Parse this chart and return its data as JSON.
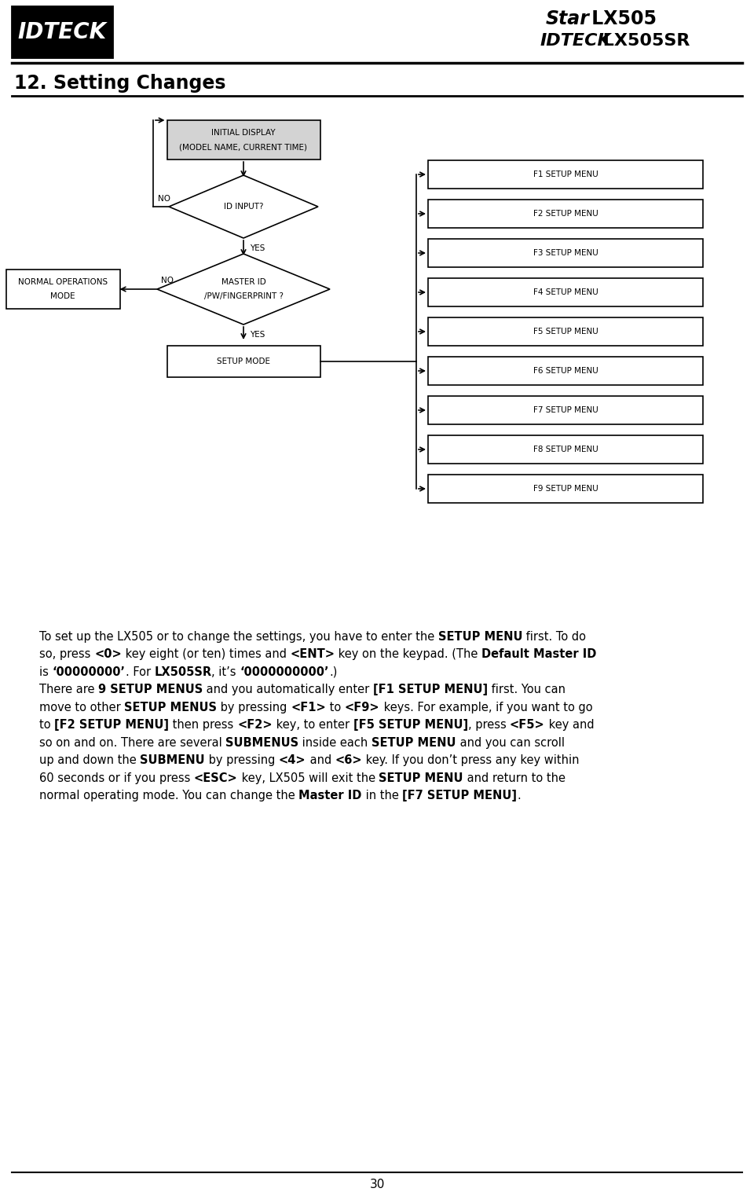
{
  "title": "12. Setting Changes",
  "page_number": "30",
  "flowchart": {
    "f_menus": [
      "F1 SETUP MENU",
      "F2 SETUP MENU",
      "F3 SETUP MENU",
      "F4 SETUP MENU",
      "F5 SETUP MENU",
      "F6 SETUP MENU",
      "F7 SETUP MENU",
      "F8 SETUP MENU",
      "F9 SETUP MENU"
    ]
  },
  "body_text": [
    [
      "To set up the LX505 or to change the settings, you have to enter the ",
      "bold",
      "SETUP MENU",
      "normal",
      " first. To do"
    ],
    [
      "so, press ",
      "bold",
      "<0>",
      "normal",
      " key eight (or ten) times and ",
      "bold",
      "<ENT>",
      "normal",
      " key on the keypad. (The ",
      "bold",
      "Default Master ID"
    ],
    [
      "is ",
      "bold",
      "‘00000000’",
      "normal",
      ". For ",
      "bold",
      "LX505SR",
      "normal",
      ", it’s ",
      "bold",
      "‘0000000000’",
      "normal",
      ".)"
    ],
    [
      "There are ",
      "bold",
      "9 SETUP MENUS",
      "normal",
      " and you automatically enter ",
      "bold",
      "[F1 SETUP MENU]",
      "normal",
      " first. You can"
    ],
    [
      "move to other ",
      "bold",
      "SETUP MENUS",
      "normal",
      " by pressing ",
      "bold",
      "<F1>",
      "normal",
      " to ",
      "bold",
      "<F9>",
      "normal",
      " keys. For example, if you want to go"
    ],
    [
      "to ",
      "bold",
      "[F2 SETUP MENU]",
      "normal",
      " then press ",
      "bold",
      "<F2>",
      "normal",
      " key, to enter ",
      "bold",
      "[F5 SETUP MENU]",
      "normal",
      ", press ",
      "bold",
      "<F5>",
      "normal",
      " key and"
    ],
    [
      "so on and on. There are several ",
      "bold",
      "SUBMENUS",
      "normal",
      " inside each ",
      "bold",
      "SETUP MENU",
      "normal",
      " and you can scroll"
    ],
    [
      "up and down the ",
      "bold",
      "SUBMENU",
      "normal",
      " by pressing ",
      "bold",
      "<4>",
      "normal",
      " and ",
      "bold",
      "<6>",
      "normal",
      " key. If you don’t press any key within"
    ],
    [
      "60 seconds or if you press ",
      "bold",
      "<ESC>",
      "normal",
      " key, LX505 will exit the ",
      "bold",
      "SETUP MENU",
      "normal",
      " and return to the"
    ],
    [
      "normal operating mode. You can change the ",
      "bold",
      "Master ID",
      "normal",
      " in the ",
      "bold",
      "[F7 SETUP MENU]",
      "normal",
      "."
    ]
  ],
  "bg_color": "#ffffff",
  "box_fill_initial": "#d3d3d3",
  "font_size_body": 10.5,
  "font_size_title": 17,
  "font_size_flow": 7.5
}
